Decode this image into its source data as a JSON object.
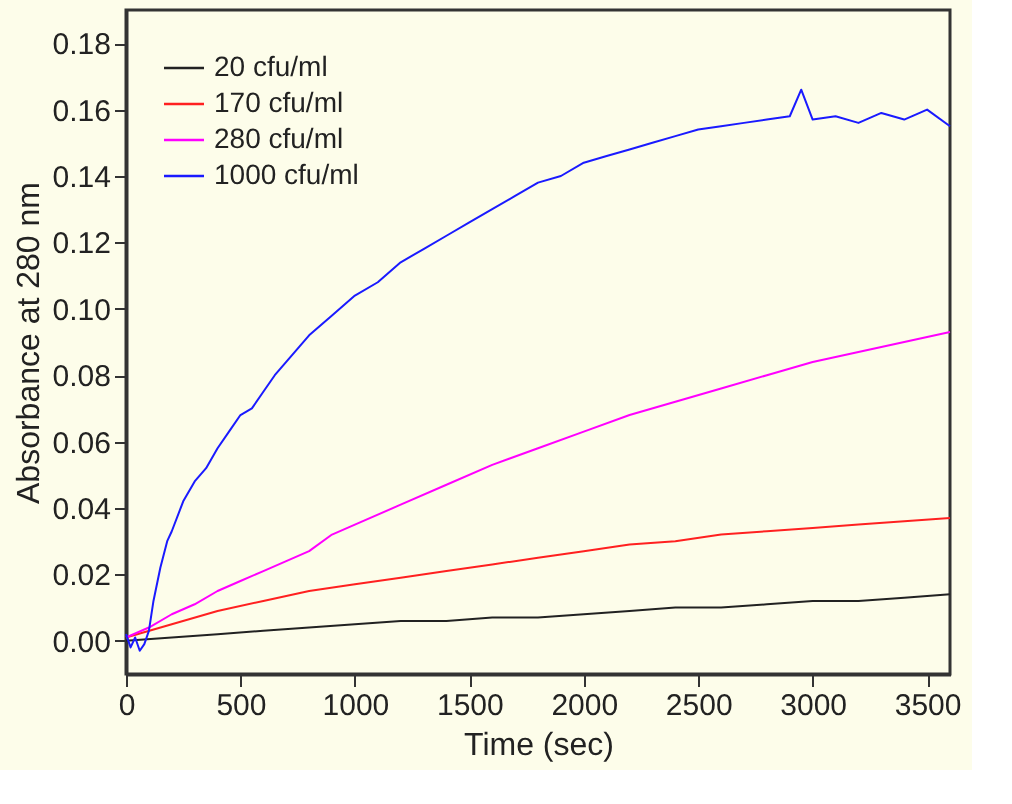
{
  "chart_data": {
    "type": "line",
    "xlabel": "Time (sec)",
    "ylabel": "Absorbance at 280 nm",
    "xlim": [
      0,
      3600
    ],
    "xticks": [
      0,
      500,
      1000,
      1500,
      2000,
      2500,
      3000,
      3500
    ],
    "ylim": [
      -0.01,
      0.19
    ],
    "yticks": [
      {
        "value": 0,
        "label": "0.00"
      },
      {
        "value": 0.02,
        "label": "0.02"
      },
      {
        "value": 0.04,
        "label": "0.04"
      },
      {
        "value": 0.06,
        "label": "0.06"
      },
      {
        "value": 0.08,
        "label": "0.08"
      },
      {
        "value": 0.1,
        "label": "0.10"
      },
      {
        "value": 0.12,
        "label": "0.12"
      },
      {
        "value": 0.14,
        "label": "0.14"
      },
      {
        "value": 0.16,
        "label": "0.16"
      },
      {
        "value": 0.18,
        "label": "0.18"
      }
    ],
    "grid": false,
    "legend": "top left",
    "marker": "none",
    "line_style": "solid",
    "series": [
      {
        "name": "20 cfu/ml",
        "color": "#222222",
        "x": [
          0,
          200,
          400,
          600,
          800,
          1000,
          1200,
          1400,
          1600,
          1800,
          2000,
          2200,
          2400,
          2600,
          2800,
          3000,
          3200,
          3400,
          3600
        ],
        "values": [
          0,
          0.001,
          0.002,
          0.003,
          0.004,
          0.005,
          0.006,
          0.006,
          0.007,
          0.007,
          0.008,
          0.009,
          0.01,
          0.01,
          0.011,
          0.012,
          0.012,
          0.013,
          0.014
        ]
      },
      {
        "name": "170 cfu/ml",
        "color": "#ff2020",
        "x": [
          0,
          200,
          400,
          600,
          800,
          1000,
          1200,
          1400,
          1600,
          1800,
          2000,
          2200,
          2400,
          2600,
          2800,
          3000,
          3200,
          3400,
          3600
        ],
        "values": [
          0.001,
          0.005,
          0.009,
          0.012,
          0.015,
          0.017,
          0.019,
          0.021,
          0.023,
          0.025,
          0.027,
          0.029,
          0.03,
          0.032,
          0.033,
          0.034,
          0.035,
          0.036,
          0.037
        ]
      },
      {
        "name": "280 cfu/ml",
        "color": "#ff00ff",
        "x": [
          0,
          100,
          200,
          300,
          400,
          500,
          600,
          700,
          800,
          900,
          1000,
          1200,
          1400,
          1600,
          1800,
          2000,
          2200,
          2400,
          2600,
          2800,
          3000,
          3200,
          3400,
          3600
        ],
        "values": [
          0.001,
          0.004,
          0.008,
          0.011,
          0.015,
          0.018,
          0.021,
          0.024,
          0.027,
          0.032,
          0.035,
          0.041,
          0.047,
          0.053,
          0.058,
          0.063,
          0.068,
          0.072,
          0.076,
          0.08,
          0.084,
          0.087,
          0.09,
          0.093
        ]
      },
      {
        "name": "1000 cfu/ml",
        "color": "#1a1aff",
        "x": [
          0,
          20,
          40,
          60,
          80,
          100,
          120,
          150,
          180,
          200,
          250,
          300,
          350,
          400,
          450,
          500,
          550,
          600,
          650,
          700,
          800,
          900,
          1000,
          1100,
          1200,
          1300,
          1400,
          1500,
          1600,
          1700,
          1800,
          1900,
          2000,
          2100,
          2200,
          2300,
          2400,
          2500,
          2600,
          2700,
          2800,
          2900,
          2950,
          3000,
          3100,
          3200,
          3300,
          3400,
          3500,
          3600
        ],
        "values": [
          0.002,
          -0.002,
          0.001,
          -0.003,
          -0.001,
          0.003,
          0.012,
          0.022,
          0.03,
          0.033,
          0.042,
          0.048,
          0.052,
          0.058,
          0.063,
          0.068,
          0.07,
          0.075,
          0.08,
          0.084,
          0.092,
          0.098,
          0.104,
          0.108,
          0.114,
          0.118,
          0.122,
          0.126,
          0.13,
          0.134,
          0.138,
          0.14,
          0.144,
          0.146,
          0.148,
          0.15,
          0.152,
          0.154,
          0.155,
          0.156,
          0.157,
          0.158,
          0.166,
          0.157,
          0.158,
          0.156,
          0.159,
          0.157,
          0.16,
          0.155
        ]
      }
    ]
  }
}
